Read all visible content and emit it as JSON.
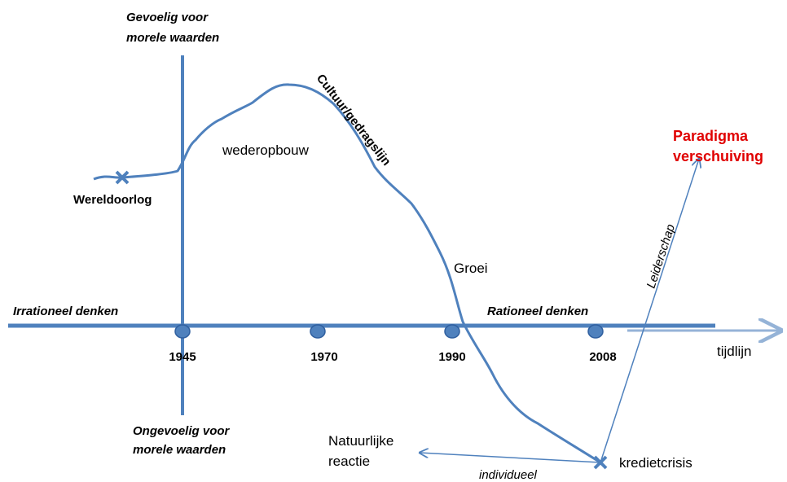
{
  "top_label": [
    "Gevoelig voor",
    "morele waarden"
  ],
  "bottom_label": [
    "Ongevoelig voor",
    "morele waarden"
  ],
  "curve_label": "Cultuur/gedragslijn",
  "phases": {
    "war": "Wereldoorlog",
    "rebuild": "wederopbouw",
    "growth": "Groei",
    "crisis": "kredietcrisis"
  },
  "left_axis_label": "Irrationeel denken",
  "right_axis_label": "Rationeel denken",
  "years": [
    "1945",
    "1970",
    "1990",
    "2008"
  ],
  "timeline_label": "tijdlijn",
  "paradigm": [
    "Paradigma",
    "verschuiving"
  ],
  "leadership": "Leiderschap",
  "natural_reaction": [
    "Natuurlijke",
    "reactie"
  ],
  "individual": "individueel"
}
